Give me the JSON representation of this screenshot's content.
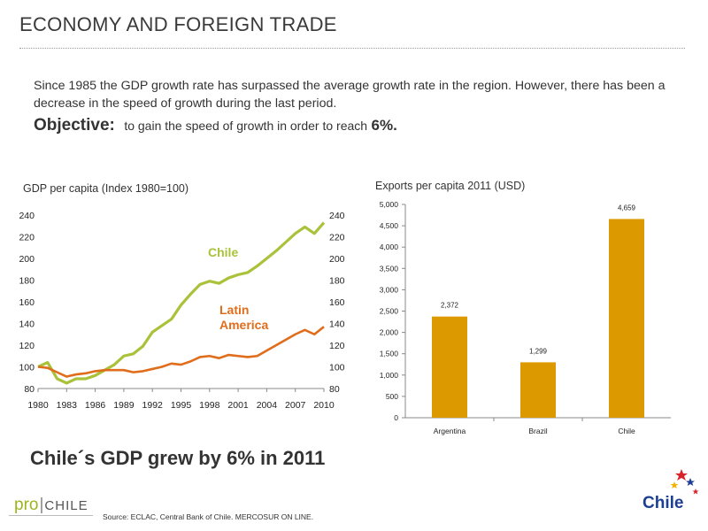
{
  "header": {
    "title": "ECONOMY AND FOREIGN TRADE"
  },
  "intro": {
    "text": "Since 1985 the GDP growth rate has surpassed the average growth rate  in the region. However, there has been a decrease in the speed of growth during  the last  period.",
    "objective_label": "Objective:",
    "objective_text": "to gain  the speed of growth in order to reach",
    "objective_value": "6%."
  },
  "highlight": "Chile´s GDP grew by 6% in 2011",
  "footer": {
    "source": "Source: ECLAC, Central Bank of Chile. MERCOSUR ON LINE.",
    "logo_pro": "pro",
    "logo_separator": "|",
    "logo_chile": "CHILE",
    "brand": "Chile"
  },
  "colors": {
    "chile_line": "#a9c23a",
    "latam_line": "#e06d1b",
    "bar": "#dc9a00",
    "logo_green": "#9bb51d",
    "brand_blue": "#1c3f94"
  },
  "chart_data": [
    {
      "type": "line",
      "title": "GDP per capita (Index 1980=100)",
      "xlabel": "",
      "ylabel": "",
      "x_ticks": [
        "1980",
        "1983",
        "1986",
        "1989",
        "1992",
        "1995",
        "1998",
        "2001",
        "2004",
        "2007",
        "2010"
      ],
      "ylim": [
        80,
        240
      ],
      "y_ticks": [
        80,
        100,
        120,
        140,
        160,
        180,
        200,
        220,
        240
      ],
      "y_axis_both_sides": true,
      "grid": false,
      "x": [
        1980,
        1981,
        1982,
        1983,
        1984,
        1985,
        1986,
        1987,
        1988,
        1989,
        1990,
        1991,
        1992,
        1993,
        1994,
        1995,
        1996,
        1997,
        1998,
        1999,
        2000,
        2001,
        2002,
        2003,
        2004,
        2005,
        2006,
        2007,
        2008,
        2009,
        2010
      ],
      "series": [
        {
          "name": "Chile",
          "label_lines": [
            "Chile"
          ],
          "color": "#a9c23a",
          "values": [
            100,
            104,
            89,
            85,
            89,
            89,
            92,
            97,
            102,
            110,
            112,
            119,
            132,
            138,
            144,
            157,
            167,
            176,
            179,
            177,
            182,
            185,
            187,
            193,
            200,
            207,
            215,
            223,
            229,
            223,
            233
          ]
        },
        {
          "name": "Latin America",
          "label_lines": [
            "Latin",
            "America"
          ],
          "color": "#e06d1b",
          "values": [
            100,
            99,
            95,
            91,
            93,
            94,
            96,
            97,
            97,
            97,
            95,
            96,
            98,
            100,
            103,
            102,
            105,
            109,
            110,
            108,
            111,
            110,
            109,
            110,
            115,
            120,
            125,
            130,
            134,
            130,
            137
          ]
        }
      ]
    },
    {
      "type": "bar",
      "title": "Exports per capita 2011 (USD)",
      "xlabel": "",
      "ylabel": "",
      "categories": [
        "Argentina",
        "Brazil",
        "Chile"
      ],
      "values": [
        2372,
        1299,
        4659
      ],
      "value_labels": [
        "2,372",
        "1,299",
        "4,659"
      ],
      "ylim": [
        0,
        5000
      ],
      "y_ticks": [
        0,
        500,
        1000,
        1500,
        2000,
        2500,
        3000,
        3500,
        4000,
        4500,
        5000
      ],
      "y_tick_labels": [
        "0",
        "500",
        "1,000",
        "1,500",
        "2,000",
        "2,500",
        "3,000",
        "3,500",
        "4,000",
        "4,500",
        "5,000"
      ],
      "grid": false,
      "color": "#dc9a00"
    }
  ]
}
